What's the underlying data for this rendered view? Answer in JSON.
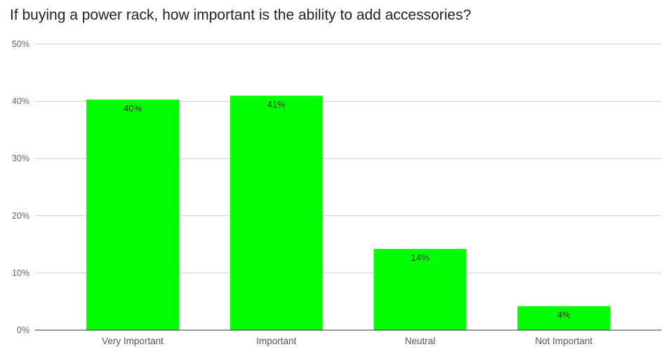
{
  "chart_data": {
    "type": "bar",
    "title": "If buying a power rack, how important is the ability to add accessories?",
    "categories": [
      "Very Important",
      "Important",
      "Neutral",
      "Not Important"
    ],
    "values": [
      40.3,
      41.0,
      14.2,
      4.2
    ],
    "data_labels": [
      "40%",
      "41%",
      "14%",
      "4%"
    ],
    "ylim": [
      0,
      50
    ],
    "yticks": [
      "0%",
      "10%",
      "20%",
      "30%",
      "40%",
      "50%"
    ],
    "xlabel": "",
    "ylabel": "",
    "grid": true,
    "legend": "none",
    "bar_color": "#00ff00"
  }
}
